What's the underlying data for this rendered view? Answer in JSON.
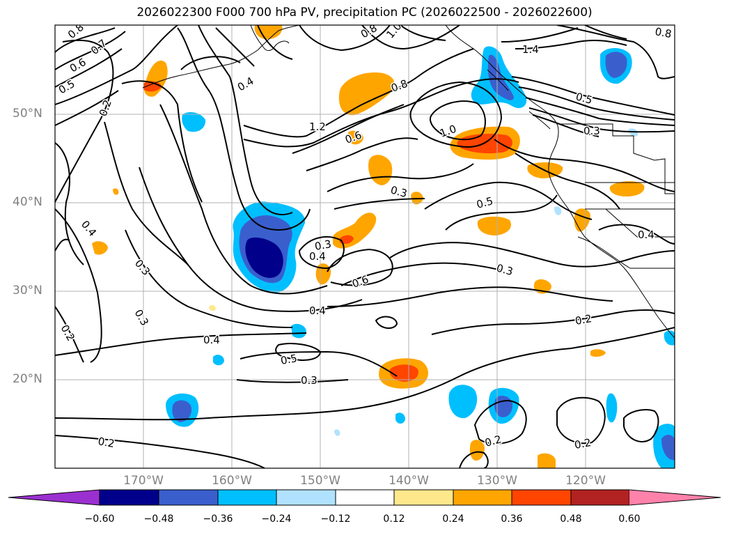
{
  "title": "2026022300 F000 700 hPa PV, precipitation PC (2026022500 - 2026022600)",
  "lat_labels": [
    "50°N",
    "40°N",
    "30°N",
    "20°N"
  ],
  "lon_labels": [
    "170°W",
    "160°W",
    "150°W",
    "140°W",
    "130°W",
    "120°W"
  ],
  "colorbar": {
    "ticks": [
      "−0.60",
      "−0.48",
      "−0.36",
      "−0.24",
      "−0.12",
      "0.12",
      "0.24",
      "0.36",
      "0.48",
      "0.60"
    ],
    "colors": [
      "#9b30d0",
      "#00008b",
      "#3a5fcd",
      "#00bfff",
      "#b0e2ff",
      "#ffffff",
      "#ffe88c",
      "#ffa500",
      "#ff4500",
      "#b22222",
      "#ff82ab"
    ]
  },
  "contour_labels": [
    "0.8",
    "0.7",
    "0.6",
    "0.5",
    "0.2",
    "0.4",
    "0.8",
    "1.0",
    "1.4",
    "0.8",
    "0.5",
    "1.2",
    "0.6",
    "1.0",
    "0.8",
    "0.3",
    "0.3",
    "0.5",
    "0.4",
    "0.3",
    "0.4",
    "0.3",
    "0.6",
    "0.4",
    "0.4",
    "0.3",
    "0.3",
    "0.2",
    "0.4",
    "0.5",
    "0.3",
    "0.2",
    "0.2",
    "0.2",
    "0.2"
  ]
}
